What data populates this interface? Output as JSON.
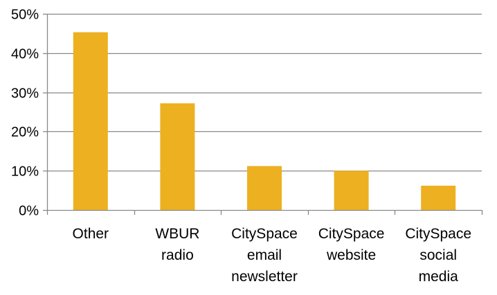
{
  "chart_data": {
    "type": "bar",
    "title": "",
    "xlabel": "",
    "ylabel": "",
    "categories": [
      [
        "Other"
      ],
      [
        "WBUR",
        "radio"
      ],
      [
        "CitySpace",
        "email",
        "newsletter"
      ],
      [
        "CitySpace",
        "website"
      ],
      [
        "CitySpace",
        "social",
        "media"
      ]
    ],
    "values": [
      45.3,
      27.2,
      11.2,
      10.0,
      6.2
    ],
    "ylim": [
      0,
      50
    ],
    "yticks": [
      0,
      10,
      20,
      30,
      40,
      50
    ],
    "ytick_labels": [
      "0%",
      "10%",
      "20%",
      "30%",
      "40%",
      "50%"
    ],
    "grid": true,
    "bar_color": "#EDB021",
    "grid_color": "#888888",
    "axis_color": "#888888"
  }
}
